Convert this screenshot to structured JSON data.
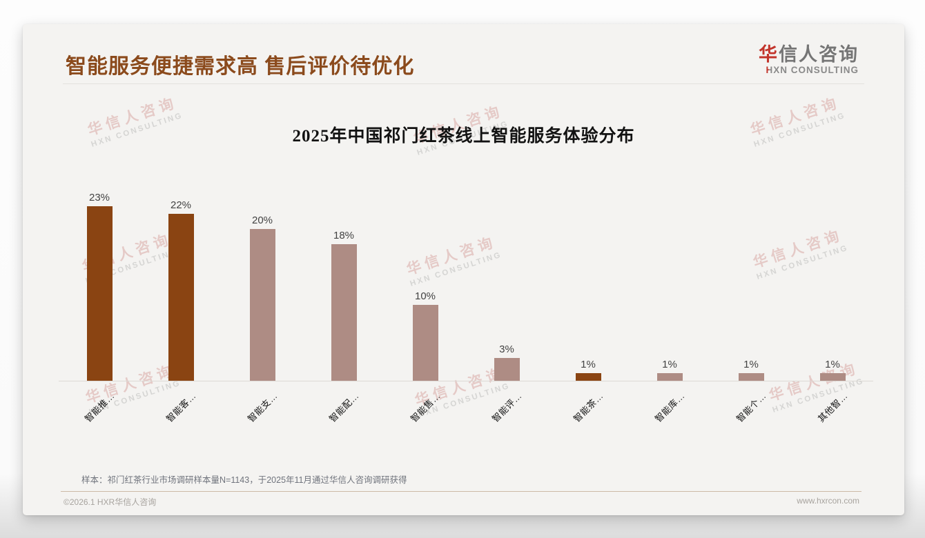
{
  "page": {
    "title": "智能服务便捷需求高 售后评价待优化",
    "logo": {
      "zh_first": "华",
      "zh_rest": "信人咨询",
      "en_first": "H",
      "en_rest": "XN CONSULTING"
    },
    "watermark": {
      "line1": "华信人咨询",
      "line2": "HXN CONSULTING"
    },
    "footnote": "样本：祁门红茶行业市场调研样本量N=1143，于2025年11月通过华信人咨询调研获得",
    "footer_left": "©2026.1 HXR华信人咨询",
    "footer_right": "www.hxrcon.com"
  },
  "colors": {
    "title_brown": "#8b4a1c",
    "bar_highlight": "#8a4412",
    "bar_normal": "#ae8c84",
    "logo_red": "#c2342b",
    "card_bg": "#f4f3f1"
  },
  "chart_data": {
    "type": "bar",
    "title": "2025年中国祁门红茶线上智能服务体验分布",
    "categories": [
      "智能推…",
      "智能客…",
      "智能支…",
      "智能配…",
      "智能售…",
      "智能评…",
      "智能茶…",
      "智能库…",
      "智能个…",
      "其他智…"
    ],
    "values": [
      23,
      22,
      20,
      18,
      10,
      3,
      1,
      1,
      1,
      1
    ],
    "value_labels": [
      "23%",
      "22%",
      "20%",
      "18%",
      "10%",
      "3%",
      "1%",
      "1%",
      "1%",
      "1%"
    ],
    "highlight": [
      true,
      true,
      false,
      false,
      false,
      false,
      true,
      false,
      false,
      false
    ],
    "xlabel": "",
    "ylabel": "",
    "ylim": [
      0,
      25
    ],
    "grid": false,
    "legend": "none",
    "value_label_position": "above",
    "x_tick_rotation_deg": 45
  }
}
